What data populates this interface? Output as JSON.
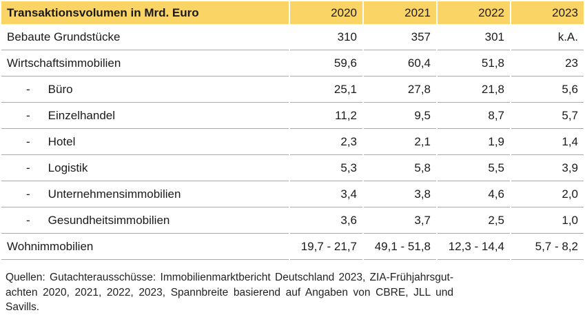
{
  "table": {
    "header_label": "Transaktionsvolumen in Mrd. Euro",
    "years": [
      "2020",
      "2021",
      "2022",
      "2023"
    ],
    "rows": [
      {
        "label": "Bebaute Grundstücke",
        "indent": false,
        "values": [
          "310",
          "357",
          "301",
          "k.A."
        ]
      },
      {
        "label": "Wirtschaftsimmobilien",
        "indent": false,
        "values": [
          "59,6",
          "60,4",
          "51,8",
          "23"
        ]
      },
      {
        "label": "Büro",
        "indent": true,
        "values": [
          "25,1",
          "27,8",
          "21,8",
          "5,6"
        ]
      },
      {
        "label": "Einzelhandel",
        "indent": true,
        "values": [
          "11,2",
          "9,5",
          "8,7",
          "5,7"
        ]
      },
      {
        "label": "Hotel",
        "indent": true,
        "values": [
          "2,3",
          "2,1",
          "1,9",
          "1,4"
        ]
      },
      {
        "label": "Logistik",
        "indent": true,
        "values": [
          "5,3",
          "5,8",
          "5,5",
          "3,9"
        ]
      },
      {
        "label": "Unternehmensimmobilien",
        "indent": true,
        "values": [
          "3,4",
          "3,8",
          "4,6",
          "2,0"
        ]
      },
      {
        "label": "Gesundheitsimmobilien",
        "indent": true,
        "values": [
          "3,6",
          "3,7",
          "2,5",
          "1,0"
        ]
      },
      {
        "label": "Wohnimmobilien",
        "indent": false,
        "values": [
          "19,7 - 21,7",
          "49,1 - 51,8",
          "12,3 - 14,4",
          "5,7 - 8,2"
        ]
      }
    ],
    "indent_marker": "-"
  },
  "footer": {
    "lines": [
      "Quellen: Gutachterausschüsse: Immobilienmarktbericht Deutschland 2023, ZIA-Frühjahrsgut-",
      "achten 2020, 2021, 2022, 2023, Spannbreite basierend auf Angaben von CBRE, JLL und",
      "Savills."
    ]
  },
  "colors": {
    "header_bg": "#fbd466",
    "row_line": "#a9a9a9",
    "text": "#1a1a1a"
  }
}
